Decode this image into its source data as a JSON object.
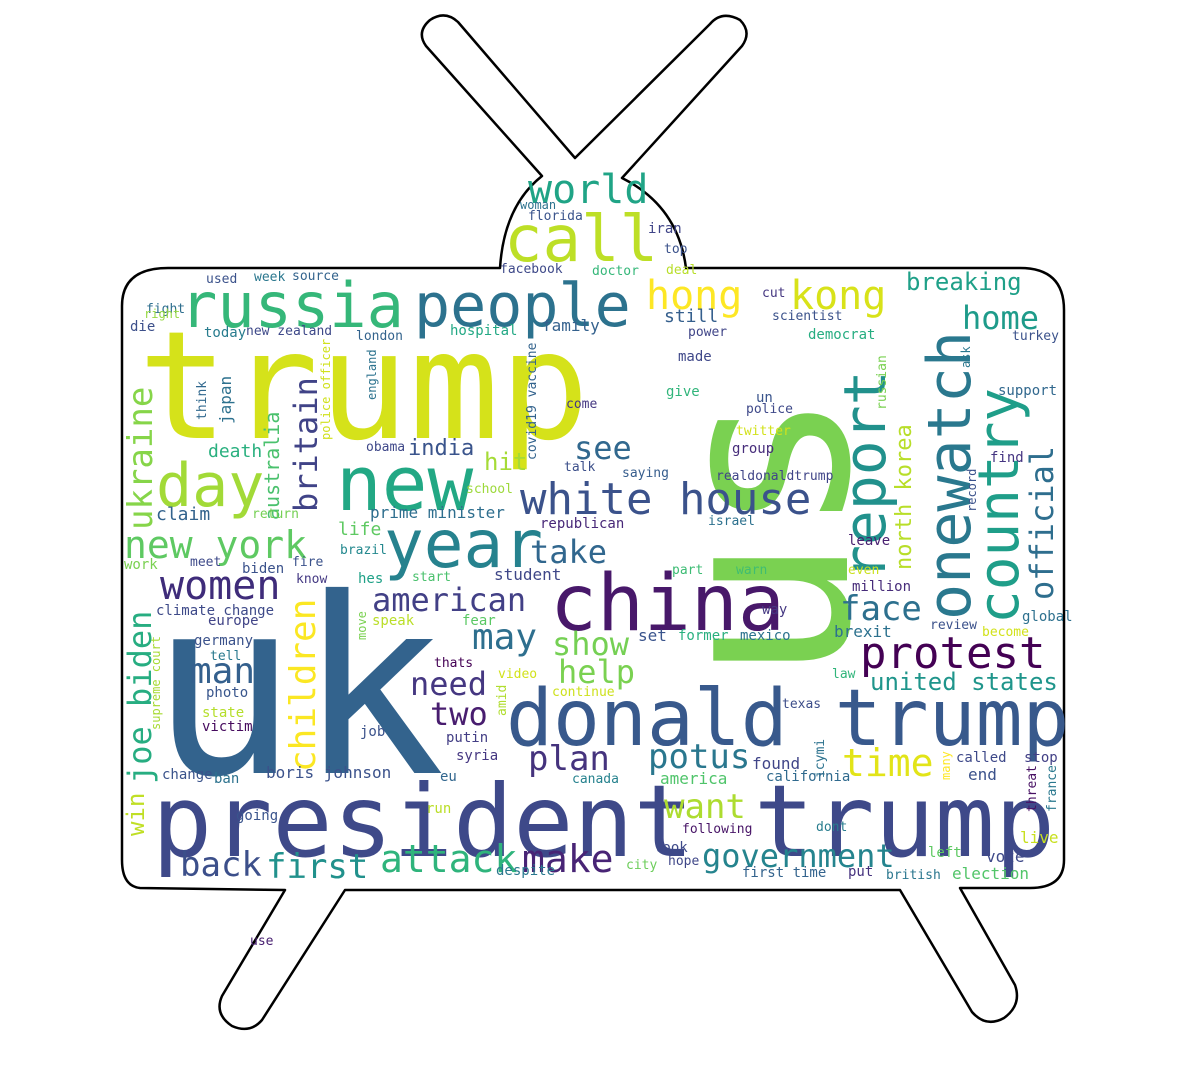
{
  "words": [
    {
      "text": "trump",
      "color": "#d5e21a"
    },
    {
      "text": "uk",
      "color": "#33638d"
    },
    {
      "text": "us",
      "color": "#7ad151"
    },
    {
      "text": "president trump",
      "color": "#3e4989"
    },
    {
      "text": "donald trump",
      "color": "#38598c"
    },
    {
      "text": "china",
      "color": "#48186a"
    },
    {
      "text": "new",
      "color": "#22a884"
    },
    {
      "text": "year",
      "color": "#26828e"
    },
    {
      "text": "russia",
      "color": "#35b779"
    },
    {
      "text": "people",
      "color": "#2c728e"
    },
    {
      "text": "call",
      "color": "#bddf26"
    },
    {
      "text": "day",
      "color": "#a2da37"
    },
    {
      "text": "white house",
      "color": "#3b528b"
    },
    {
      "text": "report",
      "color": "#21918c"
    },
    {
      "text": "onewatch",
      "color": "#2a788e"
    },
    {
      "text": "country",
      "color": "#1f9e89"
    },
    {
      "text": "world",
      "color": "#20a486"
    },
    {
      "text": "hong",
      "color": "#fde725"
    },
    {
      "text": "kong",
      "color": "#d8e219"
    },
    {
      "text": "protest",
      "color": "#440154"
    },
    {
      "text": "women",
      "color": "#3f2c7a"
    },
    {
      "text": "new york",
      "color": "#5ec962"
    },
    {
      "text": "ukraine",
      "color": "#86d549"
    },
    {
      "text": "joe biden",
      "color": "#27ad81"
    },
    {
      "text": "children",
      "color": "#fbe723"
    },
    {
      "text": "britain",
      "color": "#404387"
    },
    {
      "text": "official",
      "color": "#2e6e8e"
    },
    {
      "text": "home",
      "color": "#1e9b8a"
    },
    {
      "text": "american",
      "color": "#424086"
    },
    {
      "text": "may",
      "color": "#2e6f8e"
    },
    {
      "text": "face",
      "color": "#2d708e"
    },
    {
      "text": "man",
      "color": "#34608d"
    },
    {
      "text": "take",
      "color": "#31678e"
    },
    {
      "text": "see",
      "color": "#31688e"
    },
    {
      "text": "show",
      "color": "#75d054"
    },
    {
      "text": "help",
      "color": "#7ad151"
    },
    {
      "text": "need",
      "color": "#453781"
    },
    {
      "text": "two",
      "color": "#481d6f"
    },
    {
      "text": "plan",
      "color": "#45337d"
    },
    {
      "text": "potus",
      "color": "#2a778e"
    },
    {
      "text": "time",
      "color": "#e2e418"
    },
    {
      "text": "want",
      "color": "#addc30"
    },
    {
      "text": "attack",
      "color": "#2fb47c"
    },
    {
      "text": "make",
      "color": "#482475"
    },
    {
      "text": "government",
      "color": "#25848e"
    },
    {
      "text": "back",
      "color": "#3c4f8a"
    },
    {
      "text": "first",
      "color": "#21918c"
    },
    {
      "text": "united states",
      "color": "#1f958b"
    },
    {
      "text": "north korea",
      "color": "#b8de29"
    },
    {
      "text": "breaking",
      "color": "#1fa088"
    },
    {
      "text": "india",
      "color": "#3a548c"
    },
    {
      "text": "hit",
      "color": "#a5db36"
    },
    {
      "text": "australia",
      "color": "#4ac16d"
    },
    {
      "text": "japan",
      "color": "#2d718e"
    },
    {
      "text": "win",
      "color": "#c0df25"
    },
    {
      "text": "boris johnson",
      "color": "#3b528b"
    },
    {
      "text": "still",
      "color": "#355f8d"
    },
    {
      "text": "family",
      "color": "#34618d"
    },
    {
      "text": "student",
      "color": "#3f4788"
    },
    {
      "text": "prime minister",
      "color": "#2e6e8e"
    },
    {
      "text": "life",
      "color": "#5ec962"
    },
    {
      "text": "death",
      "color": "#2ab07f"
    },
    {
      "text": "claim",
      "color": "#33638d"
    },
    {
      "text": "republican",
      "color": "#482878"
    },
    {
      "text": "million",
      "color": "#472c7a"
    },
    {
      "text": "leave",
      "color": "#481f70"
    },
    {
      "text": "climate change",
      "color": "#3e4a89"
    },
    {
      "text": "europe",
      "color": "#414487"
    },
    {
      "text": "germany",
      "color": "#3b528b"
    },
    {
      "text": "tell",
      "color": "#29798e"
    },
    {
      "text": "photo",
      "color": "#39568c"
    },
    {
      "text": "state",
      "color": "#b5de2b"
    },
    {
      "text": "victim",
      "color": "#460b5e"
    },
    {
      "text": "change",
      "color": "#3a538b"
    },
    {
      "text": "ban",
      "color": "#2c728e"
    },
    {
      "text": "going",
      "color": "#3a548c"
    },
    {
      "text": "run",
      "color": "#bade28"
    },
    {
      "text": "eu",
      "color": "#31668e"
    },
    {
      "text": "putin",
      "color": "#433e85"
    },
    {
      "text": "syria",
      "color": "#453781"
    },
    {
      "text": "job",
      "color": "#3b528b"
    },
    {
      "text": "thats",
      "color": "#440154"
    },
    {
      "text": "video",
      "color": "#d2e21b"
    },
    {
      "text": "amid",
      "color": "#b0dd2f"
    },
    {
      "text": "speak",
      "color": "#bade28"
    },
    {
      "text": "fear",
      "color": "#5ac864"
    },
    {
      "text": "set",
      "color": "#3a548c"
    },
    {
      "text": "former",
      "color": "#2ab07f"
    },
    {
      "text": "mexico",
      "color": "#2c738e"
    },
    {
      "text": "brexit",
      "color": "#2c718e"
    },
    {
      "text": "review",
      "color": "#3b518b"
    },
    {
      "text": "global",
      "color": "#2d708e"
    },
    {
      "text": "become",
      "color": "#d2e21b"
    },
    {
      "text": "law",
      "color": "#31b57b"
    },
    {
      "text": "texas",
      "color": "#3d4e8a"
    },
    {
      "text": "icymi",
      "color": "#2c728e"
    },
    {
      "text": "many",
      "color": "#fde725"
    },
    {
      "text": "called",
      "color": "#3e4989"
    },
    {
      "text": "stop",
      "color": "#424086"
    },
    {
      "text": "end",
      "color": "#3b528b"
    },
    {
      "text": "found",
      "color": "#404588"
    },
    {
      "text": "california",
      "color": "#306a8e"
    },
    {
      "text": "america",
      "color": "#4fc46a"
    },
    {
      "text": "canada",
      "color": "#26828e"
    },
    {
      "text": "threat",
      "color": "#471063"
    },
    {
      "text": "france",
      "color": "#2a788e"
    },
    {
      "text": "live",
      "color": "#c8e020"
    },
    {
      "text": "vote",
      "color": "#3e4989"
    },
    {
      "text": "left",
      "color": "#5ec962"
    },
    {
      "text": "election",
      "color": "#52c569"
    },
    {
      "text": "british",
      "color": "#2a768e"
    },
    {
      "text": "put",
      "color": "#46327e"
    },
    {
      "text": "first time",
      "color": "#33638d"
    },
    {
      "text": "look",
      "color": "#3e4a89"
    },
    {
      "text": "hope",
      "color": "#3f4788"
    },
    {
      "text": "city",
      "color": "#6ccd5a"
    },
    {
      "text": "following",
      "color": "#481567"
    },
    {
      "text": "dont",
      "color": "#287d8e"
    },
    {
      "text": "despite",
      "color": "#2a788e"
    },
    {
      "text": "use",
      "color": "#482071"
    },
    {
      "text": "realdonaldtrump",
      "color": "#404588"
    },
    {
      "text": "talk",
      "color": "#3c4f8a"
    },
    {
      "text": "saying",
      "color": "#365d8d"
    },
    {
      "text": "israel",
      "color": "#2d718e"
    },
    {
      "text": "school",
      "color": "#9dd93b"
    },
    {
      "text": "return",
      "color": "#75d054"
    },
    {
      "text": "brazil",
      "color": "#23888e"
    },
    {
      "text": "hes",
      "color": "#1fa187"
    },
    {
      "text": "start",
      "color": "#4ac16d"
    },
    {
      "text": "know",
      "color": "#443983"
    },
    {
      "text": "biden",
      "color": "#3b528b"
    },
    {
      "text": "meet",
      "color": "#3e4a89"
    },
    {
      "text": "work",
      "color": "#7ad151"
    },
    {
      "text": "obama",
      "color": "#3f4889"
    },
    {
      "text": "covid19 vaccine",
      "color": "#33638d"
    },
    {
      "text": "england",
      "color": "#2c728e"
    },
    {
      "text": "police officer",
      "color": "#d0e11c"
    },
    {
      "text": "come",
      "color": "#453882"
    },
    {
      "text": "give",
      "color": "#31b57b"
    },
    {
      "text": "un",
      "color": "#3a548c"
    },
    {
      "text": "police",
      "color": "#3e4989"
    },
    {
      "text": "twitter",
      "color": "#d2e21b"
    },
    {
      "text": "group",
      "color": "#472d7b"
    },
    {
      "text": "russian",
      "color": "#7ad151"
    },
    {
      "text": "ask",
      "color": "#2a778e"
    },
    {
      "text": "support",
      "color": "#31688e"
    },
    {
      "text": "find",
      "color": "#453581"
    },
    {
      "text": "record",
      "color": "#3b528b"
    },
    {
      "text": "turkey",
      "color": "#3b528b"
    },
    {
      "text": "democrat",
      "color": "#26ad81"
    },
    {
      "text": "scientist",
      "color": "#3b528b"
    },
    {
      "text": "power",
      "color": "#404588"
    },
    {
      "text": "made",
      "color": "#3f4889"
    },
    {
      "text": "cut",
      "color": "#453781"
    },
    {
      "text": "hospital",
      "color": "#22a884"
    },
    {
      "text": "london",
      "color": "#33638d"
    },
    {
      "text": "new zealand",
      "color": "#3e4989"
    },
    {
      "text": "today",
      "color": "#287c8e"
    },
    {
      "text": "die",
      "color": "#3c4f8a"
    },
    {
      "text": "fight",
      "color": "#2e6e8e"
    },
    {
      "text": "think",
      "color": "#31688e"
    },
    {
      "text": "right",
      "color": "#95d840"
    },
    {
      "text": "used",
      "color": "#3b528b"
    },
    {
      "text": "week",
      "color": "#2a778e"
    },
    {
      "text": "source",
      "color": "#33638d"
    },
    {
      "text": "facebook",
      "color": "#3e4989"
    },
    {
      "text": "doctor",
      "color": "#35b779"
    },
    {
      "text": "deal",
      "color": "#b8de29"
    },
    {
      "text": "top",
      "color": "#3b528b"
    },
    {
      "text": "iran",
      "color": "#404588"
    },
    {
      "text": "woman",
      "color": "#2c728e"
    },
    {
      "text": "florida",
      "color": "#3a548c"
    },
    {
      "text": "fire",
      "color": "#3b528b"
    },
    {
      "text": "part",
      "color": "#3dbc74"
    },
    {
      "text": "warn",
      "color": "#40bd72"
    },
    {
      "text": "even",
      "color": "#cae11f"
    },
    {
      "text": "way",
      "color": "#453882"
    },
    {
      "text": "move",
      "color": "#7ad151"
    },
    {
      "text": "supreme court",
      "color": "#a8db34"
    },
    {
      "text": "continue",
      "color": "#cde11d"
    }
  ]
}
